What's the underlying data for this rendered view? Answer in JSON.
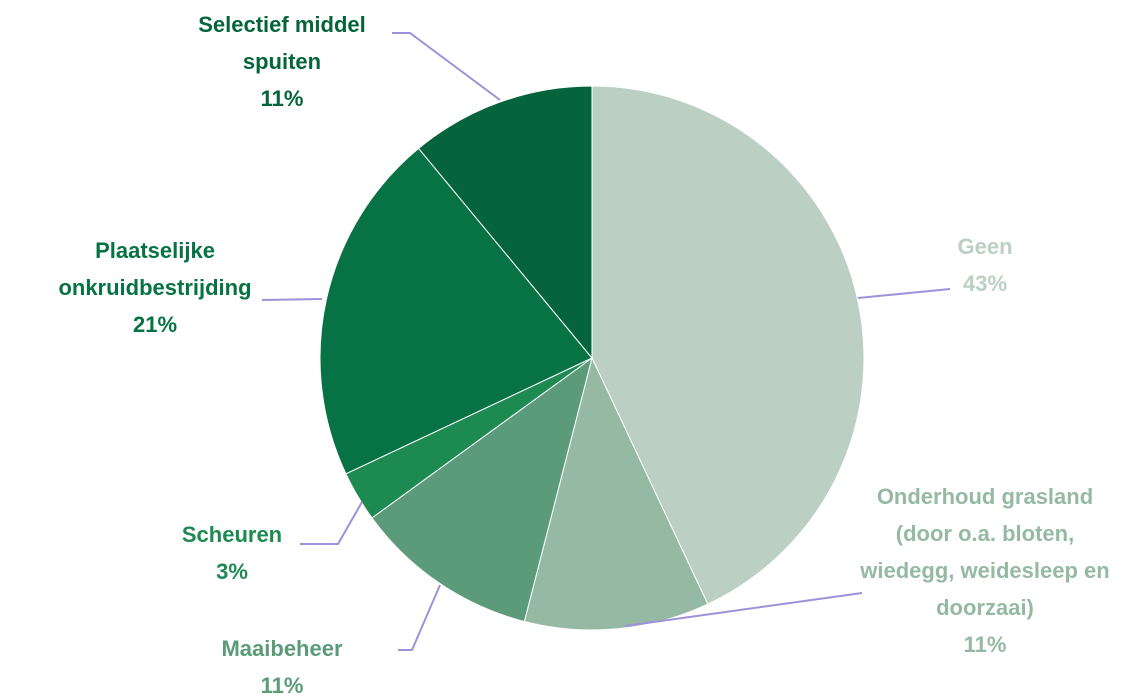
{
  "chart_data": {
    "type": "pie",
    "categories": [
      "Geen",
      "Onderhoud grasland (door o.a. bloten, wiedegg, weidesleep en doorzaai)",
      "Maaibeheer",
      "Scheuren",
      "Plaatselijke onkruidbestrijding",
      "Selectief middel spuiten"
    ],
    "values": [
      43,
      11,
      11,
      3,
      21,
      11
    ],
    "value_labels": [
      "43%",
      "11%",
      "11%",
      "3%",
      "21%",
      "11%"
    ],
    "colors": [
      "#bccfc3",
      "#96b9a3",
      "#5b9b79",
      "#1c8a51",
      "#077344",
      "#05643b"
    ]
  }
}
